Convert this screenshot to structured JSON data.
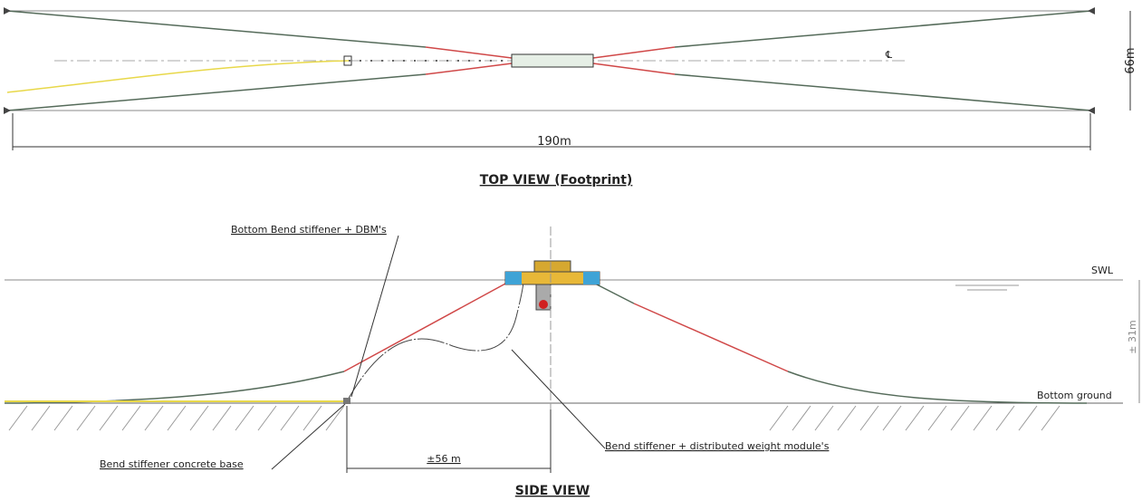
{
  "top_view": {
    "width_label": "66m",
    "length_label": "190m",
    "centerline": "℄",
    "title": "TOP VIEW (Footprint)"
  },
  "side_view": {
    "bend_stiffener_dbm": "Bottom Bend stiffener + DBM's",
    "swl": "SWL",
    "depth_label": "± 31m",
    "bottom_ground": "Bottom ground",
    "bend_stiffener_weights": "Bend stiffener + distributed weight module's",
    "concrete_base": "Bend stiffener concrete base",
    "span_label": "±56 m",
    "title": "SIDE VIEW"
  }
}
